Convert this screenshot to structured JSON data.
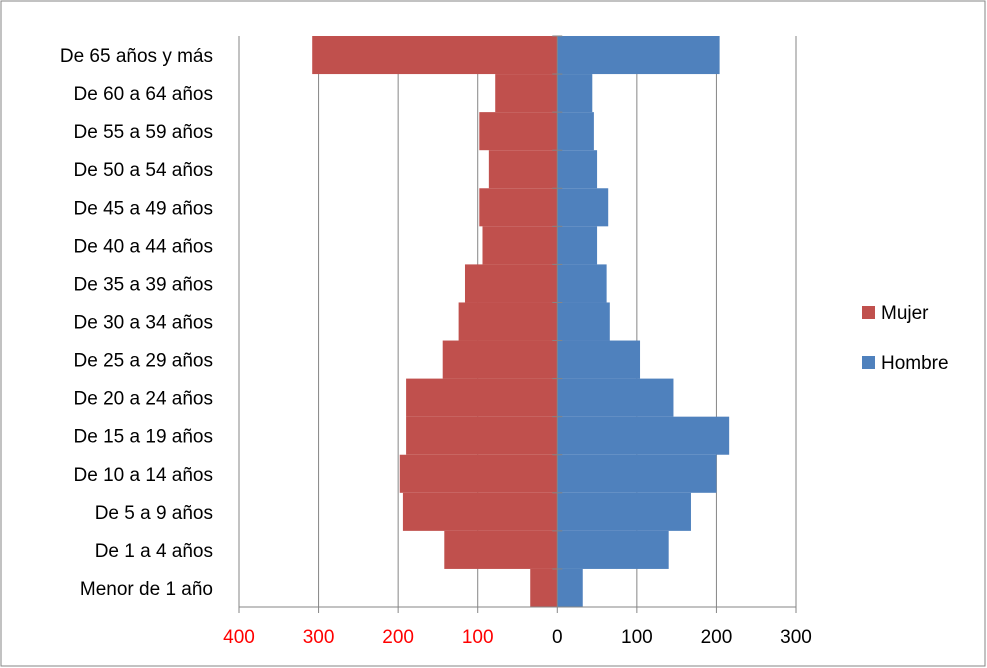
{
  "chart_data": {
    "type": "bar",
    "orientation": "horizontal",
    "title": "",
    "categories": [
      "De 65 años y más",
      "De 60 a 64 años",
      "De 55 a 59 años",
      "De 50 a 54 años",
      "De 45 a 49 años",
      "De 40 a 44 años",
      "De 35 a 39 años",
      "De 30 a 34 años",
      "De 25 a 29 años",
      "De 20 a 24 años",
      "De 15 a 19 años",
      "De 10 a 14 años",
      "De 5 a 9 años",
      "De 1 a 4 años",
      "Menor de 1 año"
    ],
    "series": [
      {
        "name": "Mujer",
        "color": "#C0504D",
        "values": [
          308,
          78,
          98,
          86,
          98,
          94,
          116,
          124,
          144,
          190,
          190,
          198,
          194,
          142,
          34
        ]
      },
      {
        "name": "Hombre",
        "color": "#4F81BD",
        "values": [
          204,
          44,
          46,
          50,
          64,
          50,
          62,
          66,
          104,
          146,
          216,
          200,
          168,
          140,
          32
        ]
      }
    ],
    "xlim": [
      -400,
      300
    ],
    "xticks": [
      {
        "value": -400,
        "label": "400",
        "color": "#FF0000"
      },
      {
        "value": -300,
        "label": "300",
        "color": "#FF0000"
      },
      {
        "value": -200,
        "label": "200",
        "color": "#FF0000"
      },
      {
        "value": -100,
        "label": "100",
        "color": "#FF0000"
      },
      {
        "value": 0,
        "label": "0",
        "color": "#000000"
      },
      {
        "value": 100,
        "label": "100",
        "color": "#000000"
      },
      {
        "value": 200,
        "label": "200",
        "color": "#000000"
      },
      {
        "value": 300,
        "label": "300",
        "color": "#000000"
      }
    ],
    "grid": true,
    "legend": {
      "position": "right",
      "entries": [
        {
          "label": "Mujer",
          "color": "#C0504D"
        },
        {
          "label": "Hombre",
          "color": "#4F81BD"
        }
      ]
    }
  }
}
